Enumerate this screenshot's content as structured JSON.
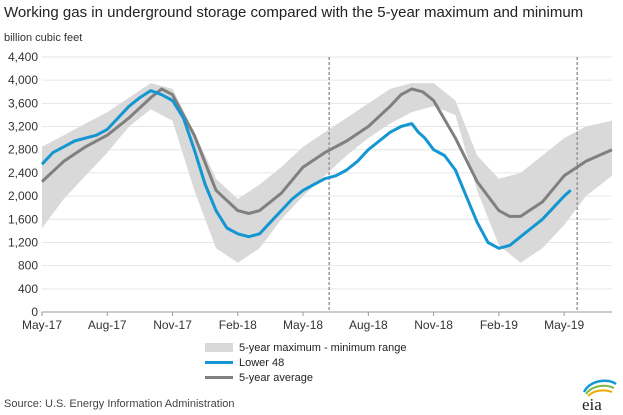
{
  "chart_data": {
    "type": "line",
    "title": "Working gas in underground storage compared with the 5-year maximum and minimum",
    "ylabel": "billion cubic feet",
    "ylim": [
      0,
      4400
    ],
    "yticks": [
      "4,400",
      "4,000",
      "3,600",
      "3,200",
      "2,800",
      "2,400",
      "2,000",
      "1,600",
      "1,200",
      "800",
      "400",
      "0"
    ],
    "xtick_labels": [
      "May-17",
      "Aug-17",
      "Nov-17",
      "Feb-18",
      "May-18",
      "Aug-18",
      "Nov-18",
      "Feb-19",
      "May-19"
    ],
    "xlim_months": [
      0,
      26.2
    ],
    "vertical_markers_months": [
      13.2,
      24.6
    ],
    "series": [
      {
        "name": "5-year maximum - minimum range",
        "kind": "band",
        "x": [
          0,
          1,
          2,
          3,
          4,
          5,
          6,
          7,
          8,
          9,
          10,
          11,
          12,
          13,
          14,
          15,
          16,
          17,
          18,
          19,
          20,
          21,
          22,
          23,
          24,
          25,
          26.2
        ],
        "low": [
          1450,
          1950,
          2350,
          2750,
          3200,
          3500,
          3300,
          2100,
          1100,
          850,
          1100,
          1600,
          2000,
          2350,
          2700,
          3000,
          3250,
          3450,
          3550,
          3400,
          2100,
          1150,
          850,
          1100,
          1500,
          2000,
          2350
        ],
        "high": [
          2850,
          3050,
          3250,
          3450,
          3700,
          3950,
          3850,
          3100,
          2300,
          1950,
          2200,
          2500,
          2850,
          3100,
          3350,
          3600,
          3850,
          3950,
          3950,
          3650,
          2700,
          2300,
          2400,
          2700,
          3000,
          3200,
          3300
        ]
      },
      {
        "name": "Lower 48",
        "x": [
          0,
          0.5,
          1,
          1.5,
          2,
          2.5,
          3,
          3.5,
          4,
          4.5,
          5,
          5.5,
          6,
          6.5,
          7,
          7.5,
          8,
          8.5,
          9,
          9.5,
          10,
          10.5,
          11,
          11.5,
          12,
          12.5,
          13,
          13.5,
          14,
          14.5,
          15,
          15.5,
          16,
          16.5,
          17,
          17.3,
          17.6,
          18,
          18.5,
          19,
          19.5,
          20,
          20.5,
          21,
          21.5,
          22,
          22.5,
          23,
          23.5,
          24,
          24.3
        ],
        "values": [
          2550,
          2750,
          2850,
          2950,
          3000,
          3050,
          3150,
          3350,
          3550,
          3700,
          3820,
          3750,
          3650,
          3350,
          2800,
          2200,
          1750,
          1450,
          1350,
          1300,
          1350,
          1550,
          1750,
          1950,
          2100,
          2200,
          2300,
          2350,
          2450,
          2600,
          2800,
          2950,
          3100,
          3200,
          3250,
          3100,
          3000,
          2800,
          2700,
          2450,
          2000,
          1550,
          1200,
          1100,
          1150,
          1300,
          1450,
          1600,
          1800,
          2000,
          2100
        ]
      },
      {
        "name": "5-year average",
        "x": [
          0,
          1,
          2,
          3,
          4,
          5,
          5.5,
          6,
          7,
          8,
          9,
          9.5,
          10,
          11,
          12,
          13,
          14,
          15,
          16,
          16.5,
          17,
          17.5,
          18,
          19,
          20,
          21,
          21.5,
          22,
          23,
          24,
          25,
          26.2
        ],
        "values": [
          2250,
          2600,
          2850,
          3050,
          3350,
          3700,
          3850,
          3750,
          3050,
          2100,
          1750,
          1700,
          1750,
          2050,
          2500,
          2750,
          2950,
          3200,
          3550,
          3750,
          3850,
          3800,
          3650,
          3000,
          2250,
          1750,
          1650,
          1650,
          1900,
          2350,
          2600,
          2800
        ]
      }
    ]
  },
  "legend": {
    "range": "5-year maximum - minimum range",
    "lower48": "Lower 48",
    "avg": "5-year average"
  },
  "source": "Source:  U.S. Energy Information Administration",
  "logo_text": "eia",
  "colors": {
    "range": "#d9d9d9",
    "lower48": "#1396d2",
    "avg": "#808080",
    "marker": "#999999"
  }
}
